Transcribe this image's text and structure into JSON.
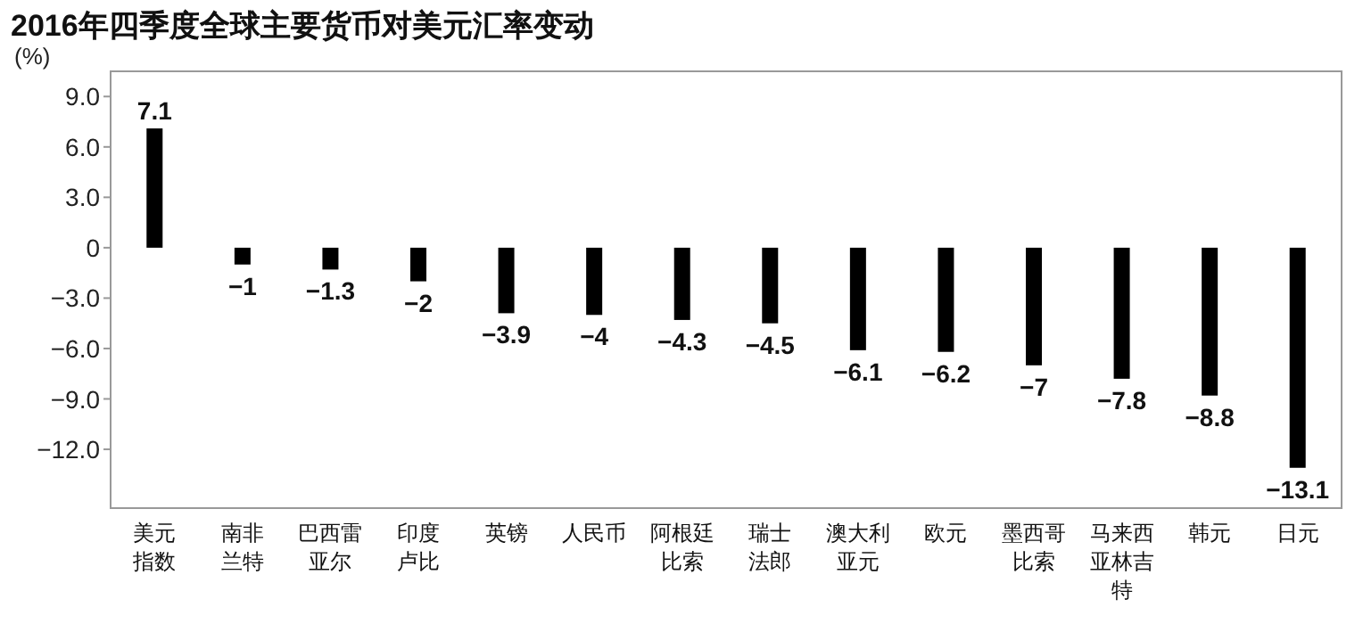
{
  "chart_data": {
    "type": "bar",
    "title": "2016年四季度全球主要货币对美元汇率变动",
    "ylabel": "(%)",
    "categories": [
      "美元指数",
      "南非兰特",
      "巴西雷亚尔",
      "印度卢比",
      "英镑",
      "人民币",
      "阿根廷比索",
      "瑞士法郎",
      "澳大利亚元",
      "欧元",
      "墨西哥比索",
      "马来西亚林吉特",
      "韩元",
      "日元"
    ],
    "values": [
      7.1,
      -1,
      -1.3,
      -2,
      -3.9,
      -4,
      -4.3,
      -4.5,
      -6.1,
      -6.2,
      -7,
      -7.8,
      -8.8,
      -13.1
    ],
    "color": "#000000",
    "ylim": [
      -15.5,
      10.5
    ],
    "yticks": [
      {
        "value": 9,
        "label": "9.0"
      },
      {
        "value": 6,
        "label": "6.0"
      },
      {
        "value": 3,
        "label": "3.0"
      },
      0,
      {
        "value": -3,
        "label": "−3.0"
      },
      {
        "value": -6,
        "label": "−6.0"
      },
      {
        "value": -9,
        "label": "−9.0"
      },
      {
        "value": -12,
        "label": "−12.0"
      }
    ],
    "data_labels": true,
    "grid": false
  }
}
